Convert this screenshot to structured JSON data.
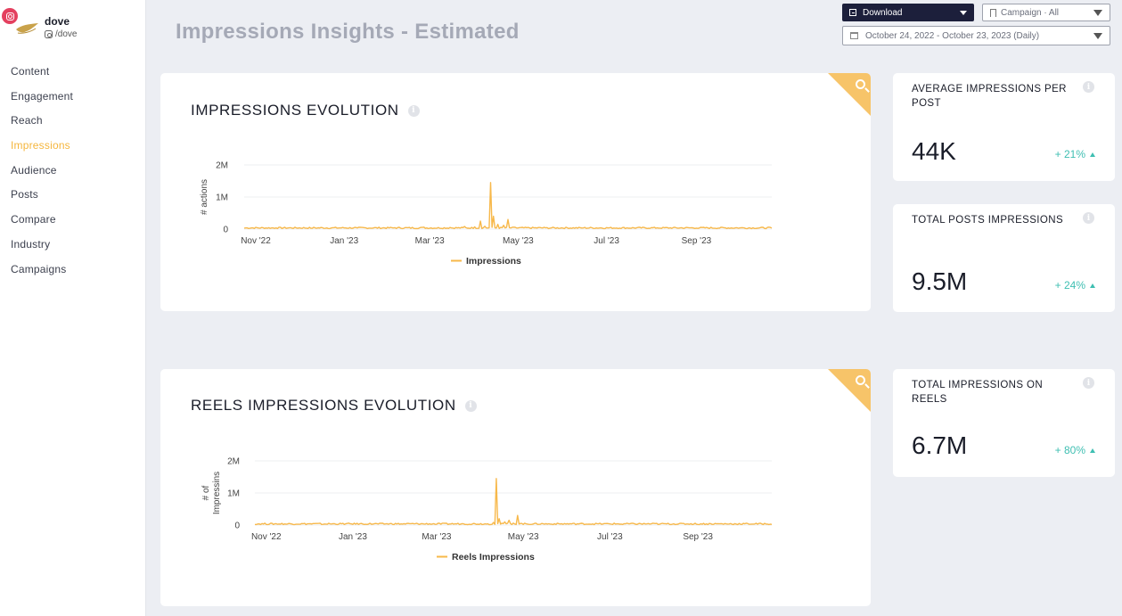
{
  "brand": {
    "name": "dove",
    "handle": "/dove"
  },
  "nav": [
    {
      "label": "Content"
    },
    {
      "label": "Engagement"
    },
    {
      "label": "Reach"
    },
    {
      "label": "Impressions",
      "active": true
    },
    {
      "label": "Audience"
    },
    {
      "label": "Posts"
    },
    {
      "label": "Compare"
    },
    {
      "label": "Industry"
    },
    {
      "label": "Campaigns"
    }
  ],
  "header": {
    "title": "Impressions Insights - Estimated",
    "download_label": "Download",
    "campaign_value": "Campaign · All",
    "date_range_value": "October 24, 2022 - October 23, 2023 (Daily)"
  },
  "colors": {
    "accent": "#f5b63d",
    "series": "#f7b84a",
    "positive": "#3fbfb2",
    "download_bg": "#1c1f3b"
  },
  "icons": [
    "instagram-icon",
    "dove-logo",
    "download-icon",
    "bookmark-icon",
    "calendar-icon",
    "chevron-down-icon",
    "search-icon",
    "info-icon",
    "arrow-up-icon"
  ],
  "kpis": [
    {
      "label": "AVERAGE IMPRESSIONS PER POST",
      "value": "44K",
      "change": "+ 21%"
    },
    {
      "label": "TOTAL POSTS IMPRESSIONS",
      "value": "9.5M",
      "change": "+ 24%"
    },
    {
      "label": "TOTAL IMPRESSIONS ON REELS",
      "value": "6.7M",
      "change": "+ 80%"
    }
  ],
  "chart_data": [
    {
      "type": "line",
      "title": "IMPRESSIONS EVOLUTION",
      "ylabel": "# actions",
      "xlabel": "",
      "x_ticks": [
        "Nov '22",
        "Jan '23",
        "Mar '23",
        "May '23",
        "Jul '23",
        "Sep '23"
      ],
      "y_ticks": [
        "0",
        "1M",
        "2M"
      ],
      "ylim": [
        0,
        2000000
      ],
      "grid": true,
      "legend": "bottom",
      "x_range": [
        "2022-10-24",
        "2023-10-23"
      ],
      "series": [
        {
          "name": "Impressions",
          "color": "#f7b84a",
          "points": [
            [
              "2022-10-24",
              30000
            ],
            [
              "2022-11-15",
              40000
            ],
            [
              "2022-12-10",
              25000
            ],
            [
              "2023-01-10",
              35000
            ],
            [
              "2023-02-05",
              45000
            ],
            [
              "2023-02-25",
              60000
            ],
            [
              "2023-03-15",
              50000
            ],
            [
              "2023-03-25",
              80000
            ],
            [
              "2023-04-01",
              70000
            ],
            [
              "2023-04-05",
              250000
            ],
            [
              "2023-04-08",
              90000
            ],
            [
              "2023-04-12",
              1450000
            ],
            [
              "2023-04-14",
              400000
            ],
            [
              "2023-04-17",
              150000
            ],
            [
              "2023-04-21",
              120000
            ],
            [
              "2023-04-24",
              300000
            ],
            [
              "2023-04-28",
              60000
            ],
            [
              "2023-05-20",
              40000
            ],
            [
              "2023-06-15",
              35000
            ],
            [
              "2023-07-10",
              30000
            ],
            [
              "2023-08-05",
              40000
            ],
            [
              "2023-09-01",
              30000
            ],
            [
              "2023-10-01",
              35000
            ],
            [
              "2023-10-23",
              30000
            ]
          ]
        }
      ]
    },
    {
      "type": "line",
      "title": "REELS IMPRESSIONS EVOLUTION",
      "ylabel": "# of Impressins",
      "xlabel": "",
      "x_ticks": [
        "Nov '22",
        "Jan '23",
        "Mar '23",
        "May '23",
        "Jul '23",
        "Sep '23"
      ],
      "y_ticks": [
        "0",
        "1M",
        "2M"
      ],
      "ylim": [
        0,
        2000000
      ],
      "grid": true,
      "legend": "bottom",
      "x_range": [
        "2022-10-24",
        "2023-10-23"
      ],
      "series": [
        {
          "name": "Reels Impressions",
          "color": "#f7b84a",
          "points": [
            [
              "2022-10-24",
              20000
            ],
            [
              "2022-11-15",
              25000
            ],
            [
              "2022-12-10",
              20000
            ],
            [
              "2023-01-10",
              25000
            ],
            [
              "2023-02-05",
              30000
            ],
            [
              "2023-03-01",
              25000
            ],
            [
              "2023-03-20",
              40000
            ],
            [
              "2023-04-05",
              30000
            ],
            [
              "2023-04-10",
              80000
            ],
            [
              "2023-04-12",
              1450000
            ],
            [
              "2023-04-14",
              200000
            ],
            [
              "2023-04-18",
              100000
            ],
            [
              "2023-04-21",
              150000
            ],
            [
              "2023-04-24",
              60000
            ],
            [
              "2023-04-27",
              300000
            ],
            [
              "2023-04-30",
              50000
            ],
            [
              "2023-05-20",
              30000
            ],
            [
              "2023-06-15",
              25000
            ],
            [
              "2023-07-10",
              20000
            ],
            [
              "2023-08-05",
              25000
            ],
            [
              "2023-09-01",
              20000
            ],
            [
              "2023-10-01",
              25000
            ],
            [
              "2023-10-23",
              20000
            ]
          ]
        }
      ]
    }
  ]
}
